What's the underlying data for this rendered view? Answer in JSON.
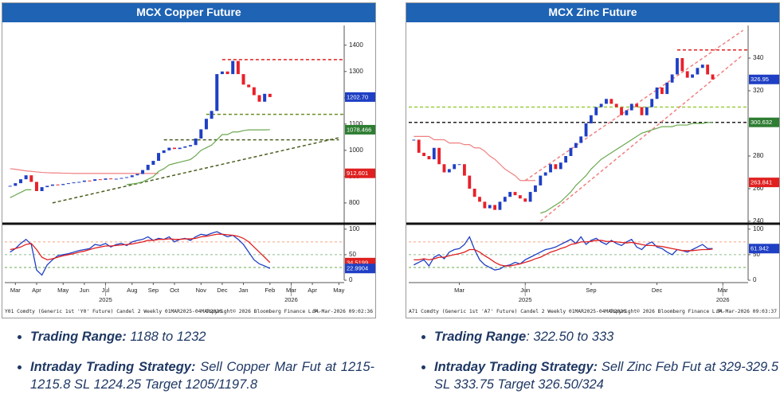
{
  "chart_data": [
    {
      "type": "candlestick",
      "title": "MCX Copper Future",
      "xlim": [
        -1,
        63
      ],
      "ylim": [
        730,
        1475
      ],
      "yticks": [
        800,
        900,
        1000,
        1100,
        1200,
        1300,
        1400
      ],
      "xticks": [
        {
          "value": 1,
          "label": "Mar"
        },
        {
          "value": 5,
          "label": "Apr"
        },
        {
          "value": 10,
          "label": "May"
        },
        {
          "value": 14,
          "label": "Jun"
        },
        {
          "value": 18,
          "label": "Jul"
        },
        {
          "value": 23,
          "label": "Aug"
        },
        {
          "value": 27,
          "label": "Sep"
        },
        {
          "value": 31,
          "label": "Oct"
        },
        {
          "value": 36,
          "label": "Nov"
        },
        {
          "value": 40,
          "label": "Dec"
        },
        {
          "value": 44,
          "label": "Jan"
        },
        {
          "value": 49,
          "label": "Feb"
        },
        {
          "value": 53,
          "label": "Mar"
        },
        {
          "value": 57,
          "label": "Apr"
        },
        {
          "value": 62,
          "label": "May"
        }
      ],
      "year_ticks": [
        {
          "value": 18,
          "label": "2025"
        },
        {
          "value": 53,
          "label": "2026"
        }
      ],
      "x": [
        0,
        1,
        2,
        3,
        4,
        5,
        6,
        7,
        8,
        9,
        10,
        11,
        12,
        13,
        14,
        15,
        16,
        17,
        18,
        19,
        20,
        21,
        22,
        23,
        24,
        25,
        26,
        27,
        28,
        29,
        30,
        31,
        32,
        33,
        34,
        35,
        36,
        37,
        38,
        39,
        40,
        41,
        42,
        43,
        44,
        45,
        46,
        47,
        48,
        49
      ],
      "price": {
        "up_color": "#1f3fc4",
        "down_color": "#e8202a",
        "values": [
          865,
          875,
          890,
          905,
          880,
          845,
          860,
          865,
          870,
          868,
          872,
          875,
          878,
          880,
          885,
          884,
          890,
          888,
          893,
          890,
          892,
          895,
          898,
          905,
          910,
          925,
          945,
          960,
          990,
          1000,
          1010,
          1005,
          1010,
          1015,
          1020,
          1045,
          1080,
          1120,
          1150,
          1290,
          1300,
          1290,
          1340,
          1290,
          1250,
          1240,
          1210,
          1185,
          1215,
          1202.7
        ]
      },
      "stops": [
        {
          "color": "#f08080",
          "values": [
            930,
            928,
            925,
            922,
            920,
            918,
            916,
            915,
            914,
            914,
            913,
            913,
            912,
            912,
            912,
            912,
            912,
            912,
            912,
            912,
            912,
            912,
            912,
            912,
            912,
            912,
            912,
            912,
            912,
            null,
            null,
            null,
            null,
            null,
            null,
            null,
            null,
            null,
            null,
            null,
            null,
            null,
            null,
            null,
            null,
            null,
            null,
            null,
            null,
            null
          ]
        },
        {
          "color": "#6aa84f",
          "values": [
            820,
            830,
            840,
            850,
            850,
            null,
            null,
            null,
            null,
            null,
            null,
            null,
            null,
            null,
            null,
            null,
            null,
            null,
            null,
            null,
            null,
            null,
            870,
            872,
            875,
            880,
            890,
            900,
            920,
            930,
            945,
            950,
            955,
            960,
            965,
            980,
            1000,
            1010,
            1020,
            1040,
            1060,
            1060,
            1070,
            1070,
            1075,
            1078,
            1078,
            1078,
            1078,
            1078.466
          ]
        }
      ],
      "levels": [
        {
          "value": 1345,
          "from": 40,
          "color": "#e02020"
        },
        {
          "value": 1137,
          "from": 37,
          "color": "#6b8e23"
        }
      ],
      "trendlines": [
        {
          "from": [
            8,
            800
          ],
          "to": [
            62,
            1048
          ],
          "color": "#4b5e20"
        },
        {
          "from": [
            29,
            1040
          ],
          "to": [
            62,
            1040
          ],
          "color": "#4b5e20"
        }
      ],
      "tags": [
        {
          "value": 1202.7,
          "label": "1202.70",
          "color": "#1f3fc4"
        },
        {
          "value": 1078.466,
          "color": "#2e7d32"
        },
        {
          "value": 912.601,
          "color": "#e02020"
        }
      ],
      "oscillator": {
        "ylim": [
          0,
          106
        ],
        "yticks": [
          0,
          50,
          100
        ],
        "levels": [
          {
            "value": 75,
            "color": "#f4a582"
          },
          {
            "value": 50,
            "color": "#8fbf8f"
          },
          {
            "value": 25,
            "color": "#6aa84f"
          }
        ],
        "series": [
          {
            "color": "#1f3fc4",
            "values": [
              55,
              62,
              72,
              80,
              70,
              20,
              10,
              30,
              40,
              48,
              50,
              52,
              55,
              58,
              60,
              62,
              70,
              68,
              72,
              65,
              70,
              72,
              68,
              75,
              78,
              80,
              85,
              78,
              82,
              80,
              85,
              75,
              80,
              82,
              78,
              85,
              90,
              88,
              92,
              95,
              90,
              85,
              88,
              80,
              70,
              55,
              40,
              32,
              28,
              22.9904
            ]
          },
          {
            "color": "#e02020",
            "values": [
              60,
              62,
              65,
              70,
              72,
              60,
              45,
              40,
              42,
              45,
              48,
              50,
              52,
              55,
              57,
              60,
              63,
              65,
              67,
              67,
              68,
              69,
              70,
              71,
              73,
              75,
              78,
              78,
              80,
              80,
              81,
              80,
              80,
              81,
              81,
              82,
              85,
              86,
              88,
              90,
              90,
              89,
              88,
              86,
              82,
              75,
              65,
              55,
              45,
              34.5199
            ]
          }
        ],
        "tags": [
          {
            "value": 34.5199,
            "color": "#e02020"
          },
          {
            "value": 22.9904,
            "color": "#1f3fc4"
          }
        ]
      },
      "footer": [
        "Y01 Comdty (Generic 1st 'Y0' Future) Candel 2 Weekly 01MAR2025-04MAR2026",
        "Copyright© 2026 Bloomberg Finance L.P.",
        "04-Mar-2026 09:02:36"
      ]
    },
    {
      "type": "candlestick",
      "title": "MCX Zinc Future",
      "xlim": [
        -1,
        66
      ],
      "ylim": [
        240,
        360
      ],
      "yticks": [
        240,
        260,
        280,
        320,
        340
      ],
      "xticks": [
        {
          "value": 9,
          "label": "Mar"
        },
        {
          "value": 22,
          "label": "Jun"
        },
        {
          "value": 35,
          "label": "Sep"
        },
        {
          "value": 48,
          "label": "Dec"
        },
        {
          "value": 61,
          "label": "Mar"
        }
      ],
      "year_ticks": [
        {
          "value": 22,
          "label": "2025"
        },
        {
          "value": 61,
          "label": "2026"
        }
      ],
      "x": [
        0,
        1,
        2,
        3,
        4,
        5,
        6,
        7,
        8,
        9,
        10,
        11,
        12,
        13,
        14,
        15,
        16,
        17,
        18,
        19,
        20,
        21,
        22,
        23,
        24,
        25,
        26,
        27,
        28,
        29,
        30,
        31,
        32,
        33,
        34,
        35,
        36,
        37,
        38,
        39,
        40,
        41,
        42,
        43,
        44,
        45,
        46,
        47,
        48,
        49,
        50,
        51,
        52,
        53,
        54,
        55,
        56,
        57,
        58,
        59
      ],
      "price": {
        "up_color": "#1f3fc4",
        "down_color": "#e8202a",
        "values": [
          290,
          282,
          280,
          278,
          285,
          275,
          270,
          272,
          275,
          275,
          268,
          260,
          255,
          252,
          248,
          250,
          247,
          252,
          255,
          258,
          256,
          254,
          252,
          258,
          262,
          268,
          270,
          275,
          272,
          276,
          280,
          285,
          288,
          292,
          300,
          305,
          310,
          312,
          315,
          312,
          310,
          305,
          308,
          312,
          310,
          305,
          310,
          315,
          322,
          318,
          325,
          330,
          340,
          332,
          328,
          330,
          334,
          336,
          330,
          326.95
        ]
      },
      "stops": [
        {
          "color": "#f08080",
          "values": [
            292,
            292,
            292,
            292,
            290,
            290,
            290,
            288,
            288,
            288,
            287,
            287,
            285,
            285,
            283,
            280,
            278,
            275,
            272,
            270,
            268,
            265,
            265,
            265,
            265,
            null,
            null,
            null,
            null,
            null,
            null,
            null,
            null,
            null,
            null,
            null,
            null,
            null,
            null,
            null,
            null,
            null,
            null,
            null,
            null,
            null,
            null,
            null,
            null,
            null,
            null,
            null,
            null,
            null,
            null,
            null,
            null,
            null,
            null,
            null
          ]
        },
        {
          "color": "#6aa84f",
          "values": [
            null,
            null,
            null,
            null,
            null,
            null,
            null,
            null,
            null,
            null,
            null,
            null,
            null,
            null,
            null,
            null,
            null,
            null,
            null,
            null,
            null,
            null,
            null,
            null,
            null,
            245,
            246,
            248,
            250,
            252,
            255,
            258,
            262,
            265,
            268,
            272,
            275,
            278,
            280,
            282,
            284,
            286,
            288,
            290,
            292,
            294,
            295,
            296,
            297,
            298,
            298,
            298,
            299,
            299,
            299,
            300,
            300,
            300,
            300.5,
            300.632
          ]
        }
      ],
      "levels": [
        {
          "value": 345,
          "from": 52,
          "color": "#e02020"
        },
        {
          "value": 310,
          "from": -1,
          "color": "#9ccc3c"
        },
        {
          "value": 300.6,
          "from": -1,
          "color": "#222222"
        }
      ],
      "trendlines": [
        {
          "from": [
            22,
            265
          ],
          "to": [
            65,
            357
          ],
          "color": "#f08080"
        },
        {
          "from": [
            25,
            240
          ],
          "to": [
            65,
            342
          ],
          "color": "#f08080"
        }
      ],
      "tags": [
        {
          "value": 326.95,
          "color": "#1f3fc4"
        },
        {
          "value": 300.632,
          "color": "#2e7d32"
        },
        {
          "value": 263.841,
          "color": "#e02020"
        }
      ],
      "oscillator": {
        "ylim": [
          0,
          106
        ],
        "yticks": [
          0,
          50,
          100
        ],
        "levels": [
          {
            "value": 75,
            "color": "#f4a582"
          },
          {
            "value": 50,
            "color": "#8fbf8f"
          },
          {
            "value": 25,
            "color": "#6aa84f"
          }
        ],
        "series": [
          {
            "color": "#1f3fc4",
            "values": [
              30,
              35,
              40,
              28,
              45,
              50,
              42,
              55,
              60,
              62,
              70,
              85,
              60,
              40,
              30,
              25,
              20,
              22,
              28,
              30,
              35,
              32,
              40,
              45,
              50,
              55,
              60,
              62,
              65,
              70,
              75,
              80,
              72,
              85,
              70,
              78,
              82,
              75,
              70,
              78,
              72,
              68,
              75,
              80,
              65,
              60,
              70,
              75,
              65,
              62,
              55,
              50,
              60,
              58,
              55,
              60,
              65,
              70,
              62,
              61.942
            ]
          },
          {
            "color": "#e02020",
            "values": [
              40,
              40,
              42,
              40,
              42,
              45,
              45,
              48,
              50,
              52,
              55,
              60,
              60,
              55,
              48,
              42,
              35,
              30,
              28,
              28,
              30,
              32,
              35,
              38,
              42,
              45,
              50,
              55,
              58,
              62,
              65,
              70,
              72,
              75,
              75,
              76,
              78,
              78,
              76,
              76,
              75,
              74,
              73,
              74,
              72,
              70,
              68,
              68,
              67,
              66,
              64,
              62,
              60,
              58,
              58,
              58,
              59,
              60,
              60,
              61
            ]
          }
        ],
        "tags": [
          {
            "value": 61.942,
            "color": "#1f3fc4"
          }
        ]
      },
      "footer": [
        "A71 Comdty (Generic 1st 'A7' Future) Candel 2 Weekly 01MAR2025-04MAR2026",
        "Copyright© 2026 Bloomberg Finance L.P.",
        "04-Mar-2026 09:03:37"
      ]
    }
  ],
  "notes": [
    [
      {
        "label": "Trading Range:",
        "text": "1188 to 1232"
      },
      {
        "label": "Intraday Trading Strategy:",
        "text": "Sell Copper Mar Fut at 1215-1215.8 SL 1224.25  Target 1205/1197.8"
      }
    ],
    [
      {
        "label": "Trading Range",
        "text": ":  322.50 to 333"
      },
      {
        "label": "Intraday Trading Strategy:",
        "text": "Sell Zinc Feb Fut at 329-329.5 SL 333.75 Target 326.50/324"
      }
    ]
  ]
}
